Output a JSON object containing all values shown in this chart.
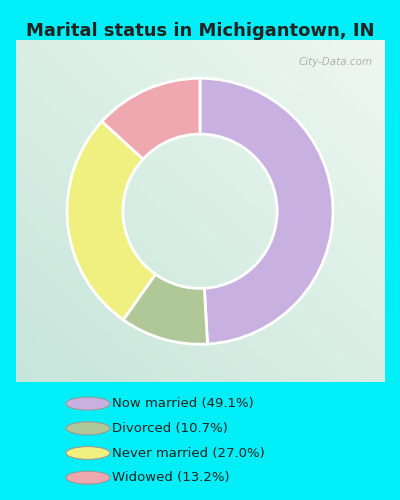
{
  "title": "Marital status in Michigantown, IN",
  "slices": [
    49.1,
    10.7,
    27.0,
    13.2
  ],
  "labels": [
    "Now married (49.1%)",
    "Divorced (10.7%)",
    "Never married (27.0%)",
    "Widowed (13.2%)"
  ],
  "colors": [
    "#c8b0e0",
    "#b0c898",
    "#f0f080",
    "#f0a8b0"
  ],
  "outer_bg": "#00eef8",
  "chart_bg_left": "#c8e8d8",
  "chart_bg_right": "#e8f4f0",
  "title_fontsize": 13,
  "donut_width": 0.42,
  "startangle": 90,
  "watermark": "City-Data.com"
}
